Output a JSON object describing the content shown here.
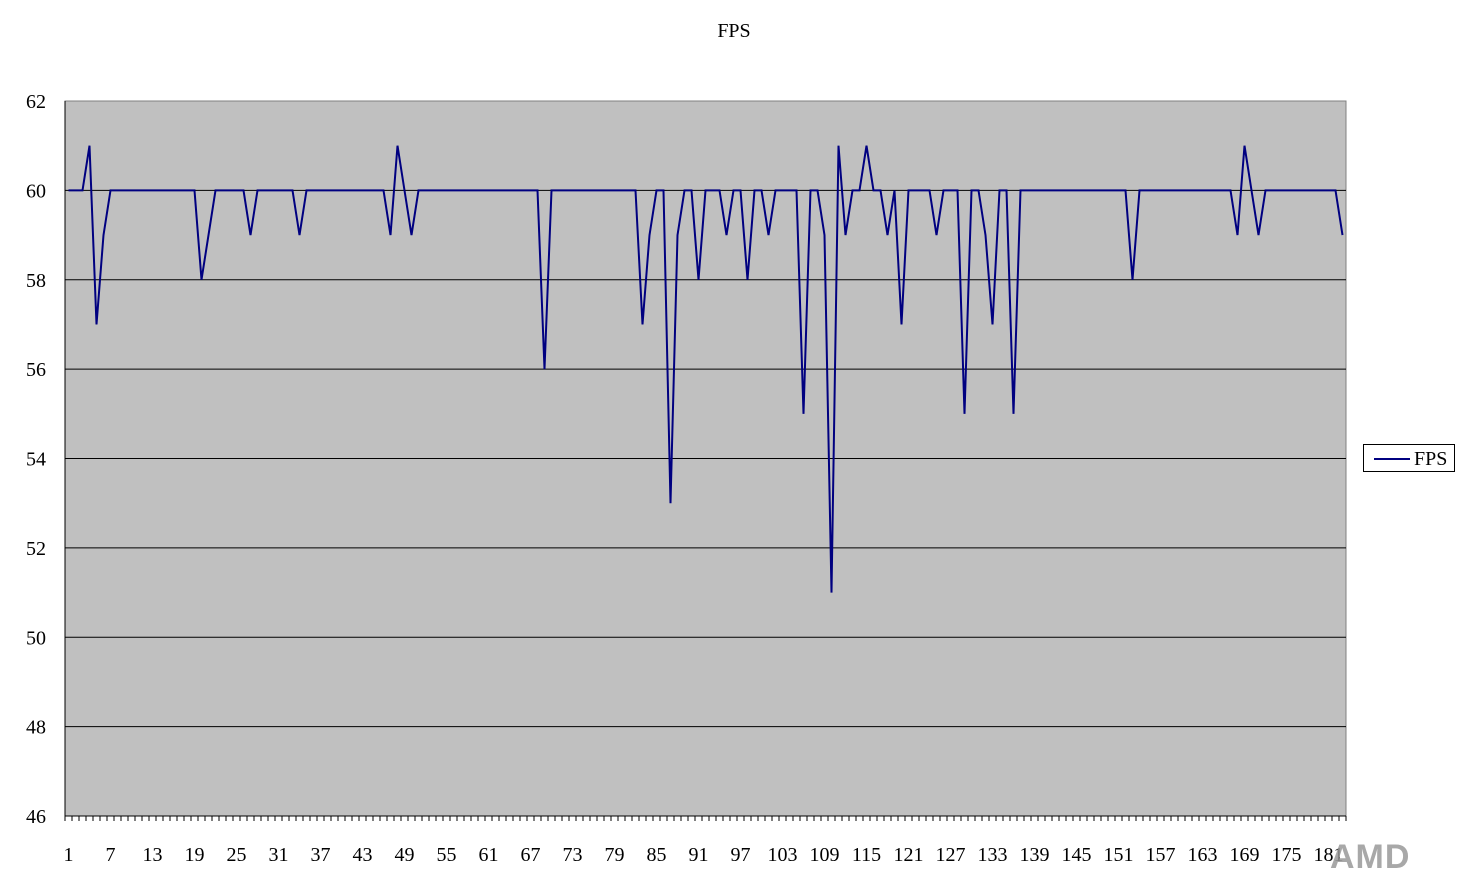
{
  "chart_data": {
    "type": "line",
    "title": "FPS",
    "xlabel": "",
    "ylabel": "",
    "ylim": [
      46,
      62
    ],
    "yticks": [
      46,
      48,
      50,
      52,
      54,
      56,
      58,
      60,
      62
    ],
    "xlim": [
      1,
      182
    ],
    "xtick_step": 6,
    "grid": "horizontal",
    "legend": "right",
    "series": [
      {
        "name": "FPS",
        "color": "#000080",
        "values": [
          60,
          60,
          60,
          61,
          57,
          59,
          60,
          60,
          60,
          60,
          60,
          60,
          60,
          60,
          60,
          60,
          60,
          60,
          60,
          58,
          59,
          60,
          60,
          60,
          60,
          60,
          59,
          60,
          60,
          60,
          60,
          60,
          60,
          59,
          60,
          60,
          60,
          60,
          60,
          60,
          60,
          60,
          60,
          60,
          60,
          60,
          59,
          61,
          60,
          59,
          60,
          60,
          60,
          60,
          60,
          60,
          60,
          60,
          60,
          60,
          60,
          60,
          60,
          60,
          60,
          60,
          60,
          60,
          56,
          60,
          60,
          60,
          60,
          60,
          60,
          60,
          60,
          60,
          60,
          60,
          60,
          60,
          57,
          59,
          60,
          60,
          53,
          59,
          60,
          60,
          58,
          60,
          60,
          60,
          59,
          60,
          60,
          58,
          60,
          60,
          59,
          60,
          60,
          60,
          60,
          55,
          60,
          60,
          59,
          51,
          61,
          59,
          60,
          60,
          61,
          60,
          60,
          59,
          60,
          57,
          60,
          60,
          60,
          60,
          59,
          60,
          60,
          60,
          55,
          60,
          60,
          59,
          57,
          60,
          60,
          55,
          60,
          60,
          60,
          60,
          60,
          60,
          60,
          60,
          60,
          60,
          60,
          60,
          60,
          60,
          60,
          60,
          58,
          60,
          60,
          60,
          60,
          60,
          60,
          60,
          60,
          60,
          60,
          60,
          60,
          60,
          60,
          59,
          61,
          60,
          59,
          60,
          60,
          60,
          60,
          60,
          60,
          60,
          60,
          60,
          60,
          60,
          59
        ]
      }
    ]
  },
  "legend": {
    "label": "FPS"
  },
  "watermark": {
    "text": "AMD"
  }
}
